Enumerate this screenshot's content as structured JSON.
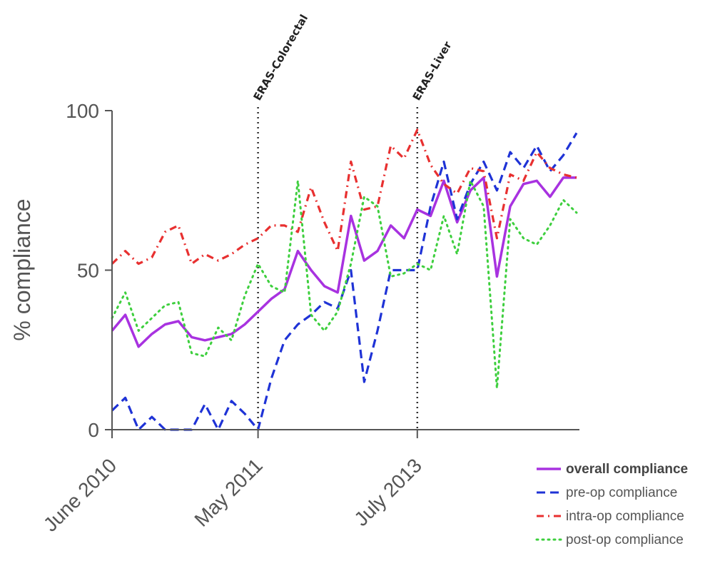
{
  "chart_data": {
    "type": "line",
    "ylabel": "% compliance",
    "ylim": [
      0,
      100
    ],
    "y_ticks": [
      0,
      50,
      100
    ],
    "x_tick_labels": [
      {
        "label": "June 2010",
        "index": 0
      },
      {
        "label": "May 2011",
        "index": 11
      },
      {
        "label": "July 2013",
        "index": 23
      }
    ],
    "x_count": 36,
    "annotations": [
      {
        "label": "ERAS-Colorectal",
        "index": 11
      },
      {
        "label": "ERAS-Liver",
        "index": 23
      }
    ],
    "series": [
      {
        "name": "overall compliance",
        "color": "#a832e0",
        "style": "solid",
        "values": [
          31,
          36,
          26,
          30,
          33,
          34,
          29,
          28,
          29,
          30,
          33,
          37,
          41,
          44,
          56,
          50,
          45,
          43,
          67,
          53,
          56,
          64,
          60,
          69,
          67,
          78,
          65,
          75,
          79,
          48,
          70,
          77,
          78,
          73,
          79,
          79
        ]
      },
      {
        "name": "pre-op compliance",
        "color": "#1f33d6",
        "style": "dash",
        "values": [
          6,
          10,
          0,
          4,
          0,
          0,
          0,
          8,
          0,
          9,
          5,
          0,
          16,
          28,
          33,
          36,
          40,
          38,
          50,
          15,
          31,
          50,
          50,
          50,
          70,
          84,
          66,
          77,
          84,
          75,
          87,
          82,
          89,
          81,
          86,
          93
        ]
      },
      {
        "name": "intra-op compliance",
        "color": "#e83030",
        "style": "dashdot",
        "values": [
          52,
          56,
          52,
          54,
          62,
          64,
          52,
          55,
          53,
          55,
          58,
          60,
          64,
          64,
          62,
          76,
          65,
          56,
          84,
          69,
          70,
          89,
          85,
          94,
          83,
          77,
          74,
          82,
          81,
          60,
          80,
          78,
          87,
          82,
          80,
          79
        ]
      },
      {
        "name": "post-op compliance",
        "color": "#3ecf3e",
        "style": "dot",
        "values": [
          35,
          43,
          31,
          35,
          39,
          40,
          24,
          23,
          32,
          28,
          42,
          52,
          45,
          43,
          78,
          36,
          31,
          37,
          52,
          73,
          70,
          48,
          49,
          52,
          50,
          67,
          55,
          78,
          70,
          13,
          66,
          60,
          58,
          64,
          72,
          68
        ]
      }
    ]
  }
}
